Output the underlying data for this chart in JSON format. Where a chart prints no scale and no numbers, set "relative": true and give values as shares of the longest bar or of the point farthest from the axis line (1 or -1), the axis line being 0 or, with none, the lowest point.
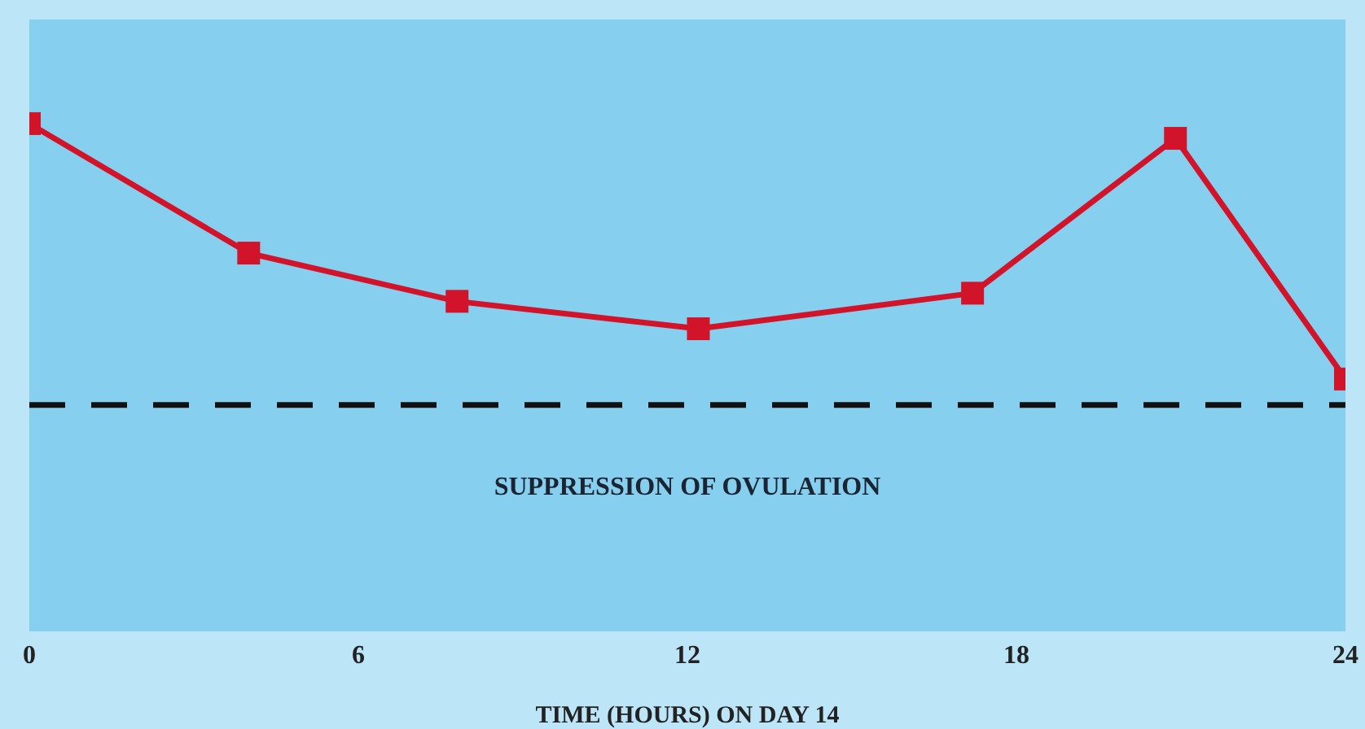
{
  "chart_data": {
    "type": "line",
    "relative": true,
    "xlabel": "TIME (HOURS) ON DAY 14",
    "x": [
      0,
      4,
      7.8,
      12.2,
      17.2,
      20.9,
      24
    ],
    "series": [
      {
        "color": "#d2142a",
        "values": [
          1,
          0.745,
          0.65,
          0.596,
          0.666,
          0.971,
          0.497
        ]
      }
    ],
    "xlim": [
      0,
      24
    ],
    "xticks": [
      0,
      6,
      12,
      18,
      24
    ],
    "ref_lines": [
      {
        "axis": "y",
        "value": 0.446,
        "label": "SUPPRESSION OF OVULATION",
        "color": "#111111",
        "line_style": "dashed"
      }
    ],
    "marker": "square",
    "line_style": "solid"
  }
}
